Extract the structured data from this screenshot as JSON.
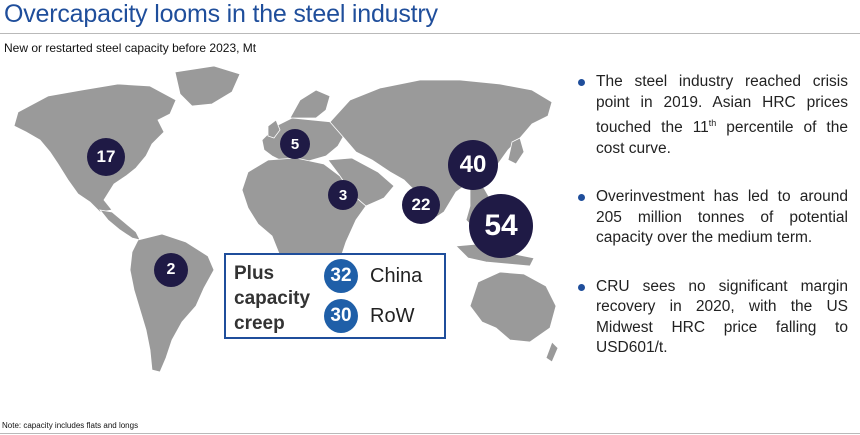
{
  "header": {
    "title": "Overcapacity looms in the steel industry",
    "subtitle": "New or restarted steel capacity before 2023, Mt"
  },
  "map": {
    "bubbles": [
      {
        "region": "North America",
        "value": "17"
      },
      {
        "region": "Europe",
        "value": "5"
      },
      {
        "region": "Middle East",
        "value": "3"
      },
      {
        "region": "India",
        "value": "22"
      },
      {
        "region": "China",
        "value": "40"
      },
      {
        "region": "Southeast Asia",
        "value": "54"
      },
      {
        "region": "South America",
        "value": "2"
      }
    ],
    "bubble_color": "#1f1a45",
    "land_color": "#9a9a9a"
  },
  "creep_box": {
    "label_line1": "Plus",
    "label_line2": "capacity",
    "label_line3": "creep",
    "items": [
      {
        "value": "32",
        "label": "China"
      },
      {
        "value": "30",
        "label": "RoW"
      }
    ],
    "accent_color": "#1f5fa8"
  },
  "bullets": [
    {
      "pre": "The steel industry reached crisis point in 2019. Asian HRC prices touched the 11",
      "sup": "th",
      "post": " percentile of the cost curve."
    },
    {
      "pre": "Overinvestment has led to around 205 million tonnes of potential capacity over the medium term.",
      "sup": "",
      "post": ""
    },
    {
      "pre": "CRU sees no significant margin recovery in 2020, with the US Midwest HRC price falling to USD601/t.",
      "sup": "",
      "post": ""
    }
  ],
  "footer": {
    "note": "Note: capacity includes flats and longs"
  }
}
